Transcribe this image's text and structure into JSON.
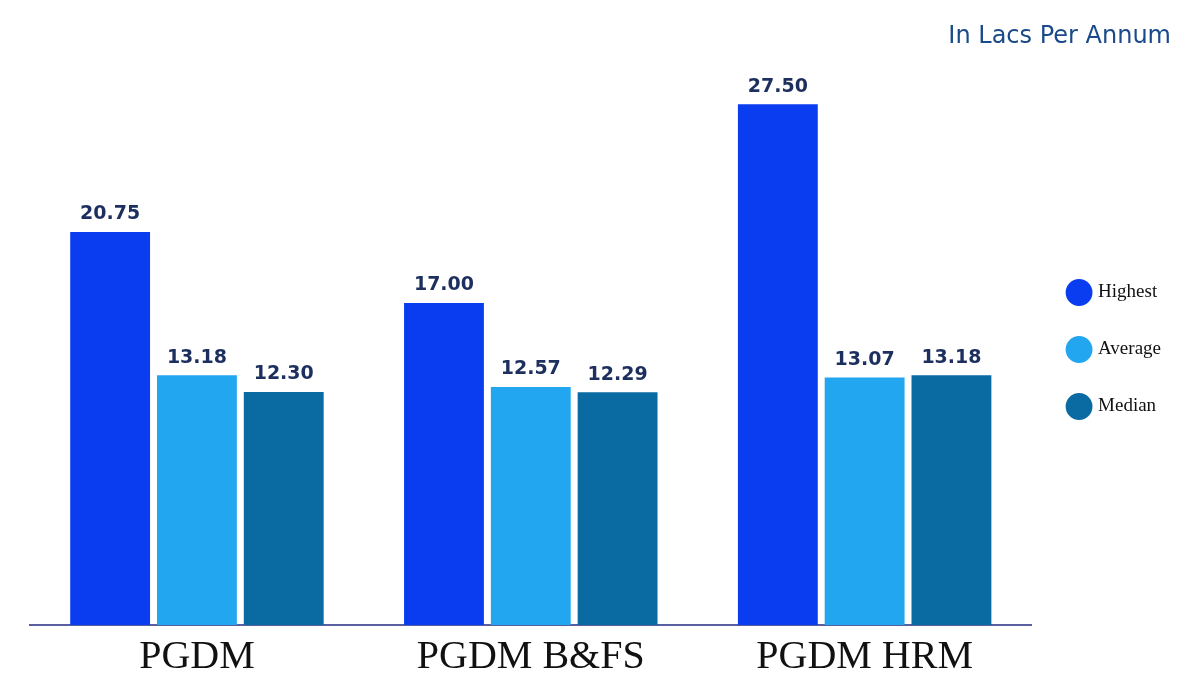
{
  "chart_data": {
    "type": "bar",
    "title": "In Lacs Per Annum",
    "categories": [
      "PGDM",
      "PGDM B&FS",
      "PGDM HRM"
    ],
    "series": [
      {
        "name": "Highest",
        "color": "#0a3cf0",
        "values": [
          20.75,
          17.0,
          27.5
        ],
        "value_labels": [
          "20.75",
          "17.00",
          "27.50"
        ]
      },
      {
        "name": "Average",
        "color": "#22a6f0",
        "values": [
          13.18,
          12.57,
          13.07
        ],
        "value_labels": [
          "13.18",
          "12.57",
          "13.07"
        ]
      },
      {
        "name": "Median",
        "color": "#0a6aa2",
        "values": [
          12.3,
          12.29,
          13.18
        ],
        "value_labels": [
          "12.30",
          "12.29",
          "13.18"
        ]
      }
    ],
    "legend": "right",
    "grid": false
  }
}
